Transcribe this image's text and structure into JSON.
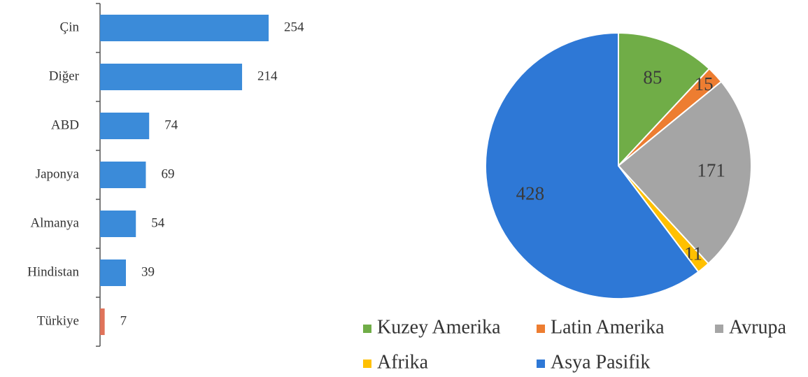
{
  "chart_data": [
    {
      "type": "hbar",
      "categories": [
        "Çin",
        "Diğer",
        "ABD",
        "Japonya",
        "Almanya",
        "Hindistan",
        "Türkiye"
      ],
      "values": [
        254,
        214,
        74,
        69,
        54,
        39,
        7
      ],
      "colors": [
        "#3b8bd9",
        "#3b8bd9",
        "#3b8bd9",
        "#3b8bd9",
        "#3b8bd9",
        "#3b8bd9",
        "#e0735a"
      ]
    },
    {
      "type": "pie",
      "categories": [
        "Kuzey Amerika",
        "Latin Amerika",
        "Avrupa",
        "Afrika",
        "Asya Pasifik"
      ],
      "values": [
        85,
        15,
        171,
        11,
        428
      ],
      "colors": [
        "#70ad47",
        "#ed7d31",
        "#a5a5a5",
        "#ffc000",
        "#2e78d6"
      ]
    }
  ]
}
